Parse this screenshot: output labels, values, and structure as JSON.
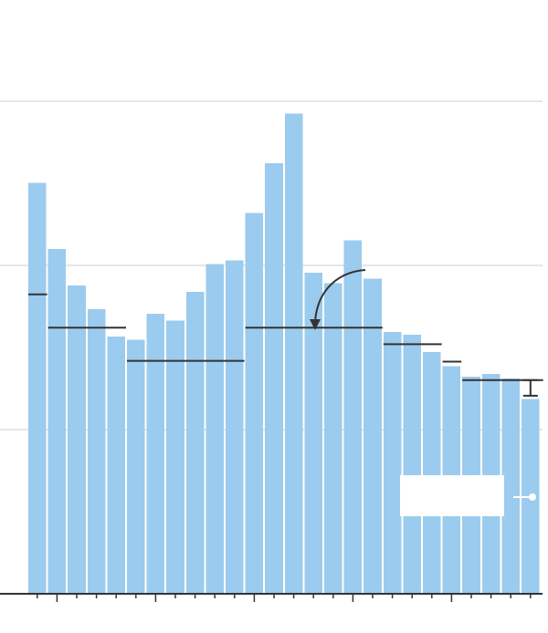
{
  "chart_data": {
    "type": "bar",
    "title": "",
    "xlabel": "",
    "ylabel": "",
    "ylim": [
      0,
      1
    ],
    "grid": true,
    "bar_color": "#9bcbee",
    "average_line_color": "#333333",
    "gridline_color": "#e6e6e6",
    "series": [
      {
        "values": [
          0.8346,
          0.6999,
          0.6255,
          0.5776,
          0.5226,
          0.5155,
          0.5686,
          0.5545,
          0.6131,
          0.6699,
          0.677,
          0.7727,
          0.8737,
          0.9747,
          0.6521,
          0.6308,
          0.7177,
          0.6397,
          0.5314,
          0.5261,
          0.4907,
          0.4623,
          0.441,
          0.4463,
          0.4375,
          0.395
        ]
      }
    ],
    "averages": [
      {
        "from": 0,
        "to": 0,
        "value": 0.6078
      },
      {
        "from": 1,
        "to": 4,
        "value": 0.5403
      },
      {
        "from": 5,
        "to": 10,
        "value": 0.473
      },
      {
        "from": 11,
        "to": 17,
        "value": 0.5403
      },
      {
        "from": 18,
        "to": 20,
        "value": 0.5066
      },
      {
        "from": 21,
        "to": 21,
        "value": 0.4712
      },
      {
        "from": 22,
        "to": 25,
        "value": 0.4339
      }
    ],
    "error_bar": {
      "index": 25,
      "low": 0.402,
      "high": 0.4339
    }
  }
}
